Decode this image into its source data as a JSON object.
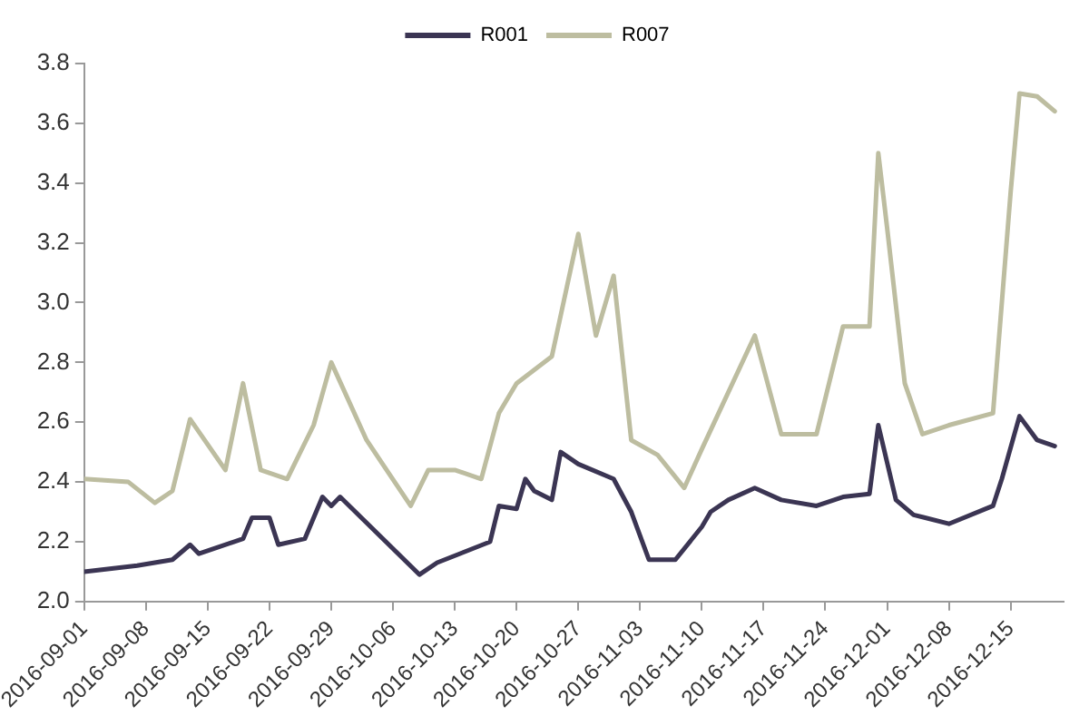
{
  "chart_data": {
    "type": "line",
    "legend": "top",
    "grid": false,
    "marker": "none",
    "line_style": "solid",
    "xlim": [
      "2016-09-01",
      "2016-12-21"
    ],
    "xticks": [
      "2016-09-01",
      "2016-09-08",
      "2016-09-15",
      "2016-09-22",
      "2016-09-29",
      "2016-10-06",
      "2016-10-13",
      "2016-10-20",
      "2016-10-27",
      "2016-11-03",
      "2016-11-10",
      "2016-11-17",
      "2016-11-24",
      "2016-12-01",
      "2016-12-08",
      "2016-12-15"
    ],
    "ylim": [
      2.0,
      3.8
    ],
    "yticks": [
      {
        "value": 2,
        "label": "2.0"
      },
      2.2,
      2.4,
      2.6,
      2.8,
      {
        "value": 3,
        "label": "3.0"
      },
      3.2,
      3.4,
      3.6,
      3.8
    ],
    "series": [
      {
        "name": "R001",
        "color": "#3b3553",
        "x": [
          "2016-09-01",
          "2016-09-07",
          "2016-09-11",
          "2016-09-13",
          "2016-09-14",
          "2016-09-19",
          "2016-09-20",
          "2016-09-22",
          "2016-09-23",
          "2016-09-26",
          "2016-09-28",
          "2016-09-29",
          "2016-09-30",
          "2016-10-09",
          "2016-10-11",
          "2016-10-17",
          "2016-10-18",
          "2016-10-20",
          "2016-10-21",
          "2016-10-22",
          "2016-10-24",
          "2016-10-25",
          "2016-10-27",
          "2016-10-31",
          "2016-11-02",
          "2016-11-04",
          "2016-11-07",
          "2016-11-10",
          "2016-11-11",
          "2016-11-13",
          "2016-11-16",
          "2016-11-19",
          "2016-11-23",
          "2016-11-26",
          "2016-11-29",
          "2016-11-30",
          "2016-12-02",
          "2016-12-04",
          "2016-12-08",
          "2016-12-13",
          "2016-12-14",
          "2016-12-16",
          "2016-12-18",
          "2016-12-20"
        ],
        "values": [
          2.1,
          2.12,
          2.14,
          2.19,
          2.16,
          2.21,
          2.28,
          2.28,
          2.19,
          2.21,
          2.35,
          2.32,
          2.35,
          2.09,
          2.13,
          2.2,
          2.32,
          2.31,
          2.41,
          2.37,
          2.34,
          2.5,
          2.46,
          2.41,
          2.3,
          2.14,
          2.14,
          2.25,
          2.3,
          2.34,
          2.38,
          2.34,
          2.32,
          2.35,
          2.36,
          2.59,
          2.34,
          2.29,
          2.26,
          2.32,
          2.41,
          2.62,
          2.54,
          2.52
        ]
      },
      {
        "name": "R007",
        "color": "#bdbda0",
        "x": [
          "2016-09-01",
          "2016-09-06",
          "2016-09-09",
          "2016-09-11",
          "2016-09-13",
          "2016-09-17",
          "2016-09-19",
          "2016-09-21",
          "2016-09-24",
          "2016-09-27",
          "2016-09-29",
          "2016-10-03",
          "2016-10-08",
          "2016-10-10",
          "2016-10-13",
          "2016-10-16",
          "2016-10-18",
          "2016-10-20",
          "2016-10-24",
          "2016-10-27",
          "2016-10-29",
          "2016-10-31",
          "2016-11-02",
          "2016-11-05",
          "2016-11-08",
          "2016-11-10",
          "2016-11-16",
          "2016-11-19",
          "2016-11-23",
          "2016-11-26",
          "2016-11-29",
          "2016-11-30",
          "2016-12-01",
          "2016-12-03",
          "2016-12-05",
          "2016-12-08",
          "2016-12-13",
          "2016-12-15",
          "2016-12-16",
          "2016-12-18",
          "2016-12-20"
        ],
        "values": [
          2.41,
          2.4,
          2.33,
          2.37,
          2.61,
          2.44,
          2.73,
          2.44,
          2.41,
          2.59,
          2.8,
          2.54,
          2.32,
          2.44,
          2.44,
          2.41,
          2.63,
          2.73,
          2.82,
          3.23,
          2.89,
          3.09,
          2.54,
          2.49,
          2.38,
          2.51,
          2.89,
          2.56,
          2.56,
          2.92,
          2.92,
          3.5,
          3.25,
          2.73,
          2.56,
          2.59,
          2.63,
          3.37,
          3.7,
          3.69,
          3.64
        ]
      }
    ]
  }
}
